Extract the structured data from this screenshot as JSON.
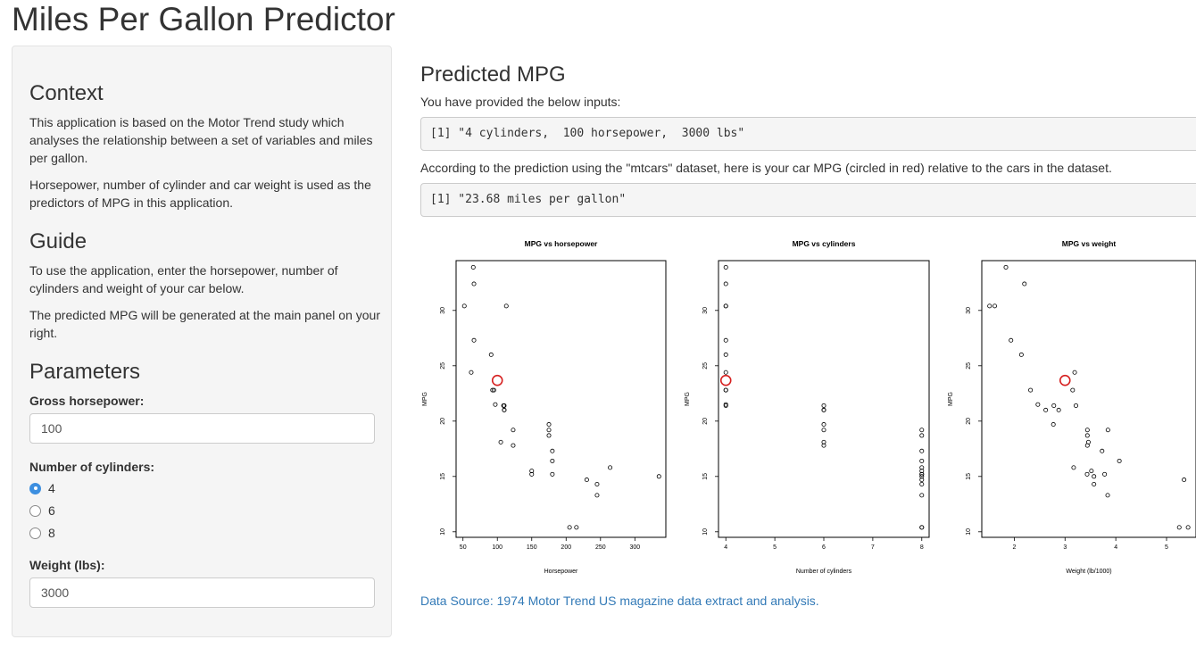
{
  "app": {
    "title": "Miles Per Gallon Predictor"
  },
  "sidebar": {
    "context_heading": "Context",
    "context_p1": "This application is based on the Motor Trend study which analyses the relationship between a set of variables and miles per gallon.",
    "context_p2": "Horsepower, number of cylinder and car weight is used as the predictors of MPG in this application.",
    "guide_heading": "Guide",
    "guide_p1": "To use the application, enter the horsepower, number of cylinders and weight of your car below.",
    "guide_p2": "The predicted MPG will be generated at the main panel on your right.",
    "params_heading": "Parameters",
    "hp_label": "Gross horsepower:",
    "hp_value": "100",
    "cyl_label": "Number of cylinders:",
    "cyl_options": [
      "4",
      "6",
      "8"
    ],
    "cyl_selected": "4",
    "wt_label": "Weight (lbs):",
    "wt_value": "3000"
  },
  "main": {
    "heading": "Predicted MPG",
    "inputs_intro": "You have provided the below inputs:",
    "inputs_output": "[1] \"4 cylinders,  100 horsepower,  3000 lbs\"",
    "prediction_intro": "According to the prediction using the \"mtcars\" dataset, here is your car MPG (circled in red) relative to the cars in the dataset.",
    "prediction_output": "[1] \"23.68 miles per gallon\"",
    "source_link": "Data Source: 1974 Motor Trend US magazine data extract and analysis."
  },
  "colors": {
    "prediction": "#d62020",
    "link": "#337ab7",
    "points": "#000000"
  },
  "chart_data": [
    {
      "type": "scatter",
      "title": "MPG vs horsepower",
      "xlabel": "Horsepower",
      "ylabel": "MPG",
      "xticks": [
        50,
        100,
        150,
        200,
        250,
        300
      ],
      "yticks": [
        10,
        15,
        20,
        25,
        30
      ],
      "xlim": [
        40,
        345
      ],
      "ylim": [
        9.5,
        34.5
      ],
      "x": [
        110,
        110,
        93,
        110,
        175,
        105,
        245,
        62,
        95,
        123,
        123,
        180,
        180,
        180,
        205,
        215,
        230,
        66,
        52,
        65,
        97,
        150,
        150,
        245,
        175,
        66,
        91,
        113,
        264,
        175,
        335,
        109
      ],
      "y": [
        21,
        21,
        22.8,
        21.4,
        18.7,
        18.1,
        14.3,
        24.4,
        22.8,
        19.2,
        17.8,
        16.4,
        17.3,
        15.2,
        10.4,
        10.4,
        14.7,
        32.4,
        30.4,
        33.9,
        21.5,
        15.5,
        15.2,
        13.3,
        19.2,
        27.3,
        26,
        30.4,
        15.8,
        19.7,
        15,
        21.4
      ],
      "predicted": {
        "x": 100,
        "y": 23.68
      }
    },
    {
      "type": "scatter",
      "title": "MPG vs cylinders",
      "xlabel": "Number of cylinders",
      "ylabel": "MPG",
      "xticks": [
        4,
        5,
        6,
        7,
        8
      ],
      "yticks": [
        10,
        15,
        20,
        25,
        30
      ],
      "xlim": [
        3.85,
        8.15
      ],
      "ylim": [
        9.5,
        34.5
      ],
      "x": [
        6,
        6,
        4,
        6,
        8,
        6,
        8,
        4,
        4,
        6,
        6,
        8,
        8,
        8,
        8,
        8,
        8,
        4,
        4,
        4,
        4,
        8,
        8,
        8,
        8,
        4,
        4,
        4,
        8,
        6,
        8,
        4
      ],
      "y": [
        21,
        21,
        22.8,
        21.4,
        18.7,
        18.1,
        14.3,
        24.4,
        22.8,
        19.2,
        17.8,
        16.4,
        17.3,
        15.2,
        10.4,
        10.4,
        14.7,
        32.4,
        30.4,
        33.9,
        21.5,
        15.5,
        15.2,
        13.3,
        19.2,
        27.3,
        26,
        30.4,
        15.8,
        19.7,
        15,
        21.4
      ],
      "predicted": {
        "x": 4,
        "y": 23.68
      }
    },
    {
      "type": "scatter",
      "title": "MPG vs weight",
      "xlabel": "Weight (lb/1000)",
      "ylabel": "MPG",
      "xticks": [
        2,
        3,
        4,
        5
      ],
      "yticks": [
        10,
        15,
        20,
        25,
        30
      ],
      "xlim": [
        1.36,
        5.58
      ],
      "ylim": [
        9.5,
        34.5
      ],
      "x": [
        2.62,
        2.875,
        2.32,
        3.215,
        3.44,
        3.46,
        3.57,
        3.19,
        3.15,
        3.44,
        3.44,
        4.07,
        3.73,
        3.78,
        5.25,
        5.424,
        5.345,
        2.2,
        1.615,
        1.835,
        2.465,
        3.52,
        3.435,
        3.84,
        3.845,
        1.935,
        2.14,
        1.513,
        3.17,
        2.77,
        3.57,
        2.78
      ],
      "y": [
        21,
        21,
        22.8,
        21.4,
        18.7,
        18.1,
        14.3,
        24.4,
        22.8,
        19.2,
        17.8,
        16.4,
        17.3,
        15.2,
        10.4,
        10.4,
        14.7,
        32.4,
        30.4,
        33.9,
        21.5,
        15.5,
        15.2,
        13.3,
        19.2,
        27.3,
        26,
        30.4,
        15.8,
        19.7,
        15,
        21.4
      ],
      "predicted": {
        "x": 3.0,
        "y": 23.68
      }
    }
  ]
}
